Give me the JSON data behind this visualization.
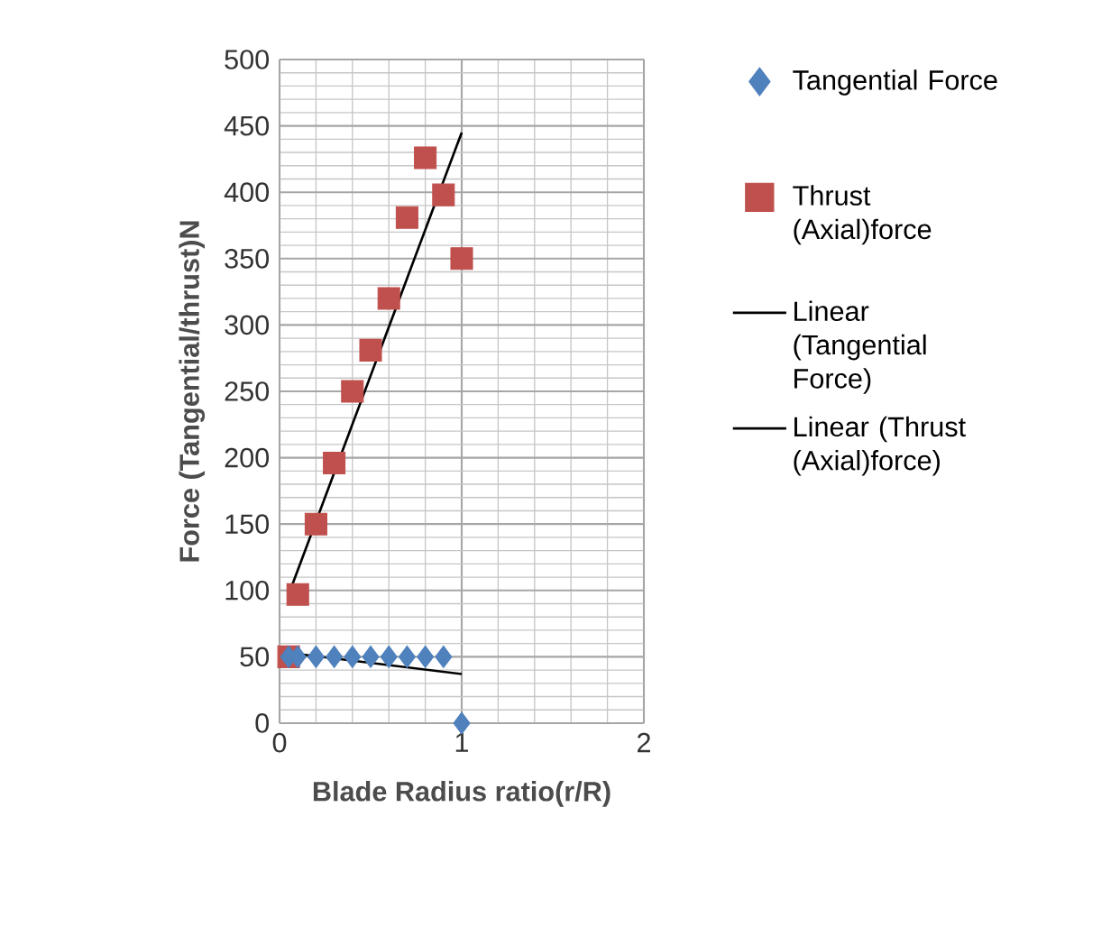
{
  "chart_data": {
    "type": "scatter",
    "xlabel": "Blade Radius ratio(r/R)",
    "ylabel": "Force (Tangential/thrust)N",
    "xlim": [
      0,
      2
    ],
    "ylim": [
      0,
      500
    ],
    "xticks": [
      0,
      1,
      2
    ],
    "yticks": [
      0,
      50,
      100,
      150,
      200,
      250,
      300,
      350,
      400,
      450,
      500
    ],
    "grid": true,
    "legend": "right",
    "series": [
      {
        "name": "Tangential Force",
        "marker": "diamond",
        "color": "#4f81bd",
        "x": [
          0.05,
          0.1,
          0.2,
          0.3,
          0.4,
          0.5,
          0.6,
          0.7,
          0.8,
          0.9,
          1.0
        ],
        "values": [
          50,
          50,
          50,
          50,
          50,
          50,
          50,
          50,
          50,
          50,
          0
        ]
      },
      {
        "name": "Thrust (Axial)force",
        "marker": "square",
        "color": "#c0504d",
        "x": [
          0.05,
          0.1,
          0.2,
          0.3,
          0.4,
          0.5,
          0.6,
          0.7,
          0.8,
          0.9,
          1.0
        ],
        "values": [
          50,
          97,
          150,
          196,
          250,
          281,
          320,
          381,
          426,
          398,
          350
        ]
      },
      {
        "name": "Linear (Tangential Force)",
        "type": "line",
        "marker": "none",
        "color": "#000000",
        "x": [
          0.05,
          1.0
        ],
        "values": [
          53,
          37
        ]
      },
      {
        "name": "Linear (Thrust (Axial)force)",
        "type": "line",
        "marker": "none",
        "color": "#000000",
        "x": [
          0.05,
          1.0
        ],
        "values": [
          97,
          445
        ]
      }
    ]
  }
}
